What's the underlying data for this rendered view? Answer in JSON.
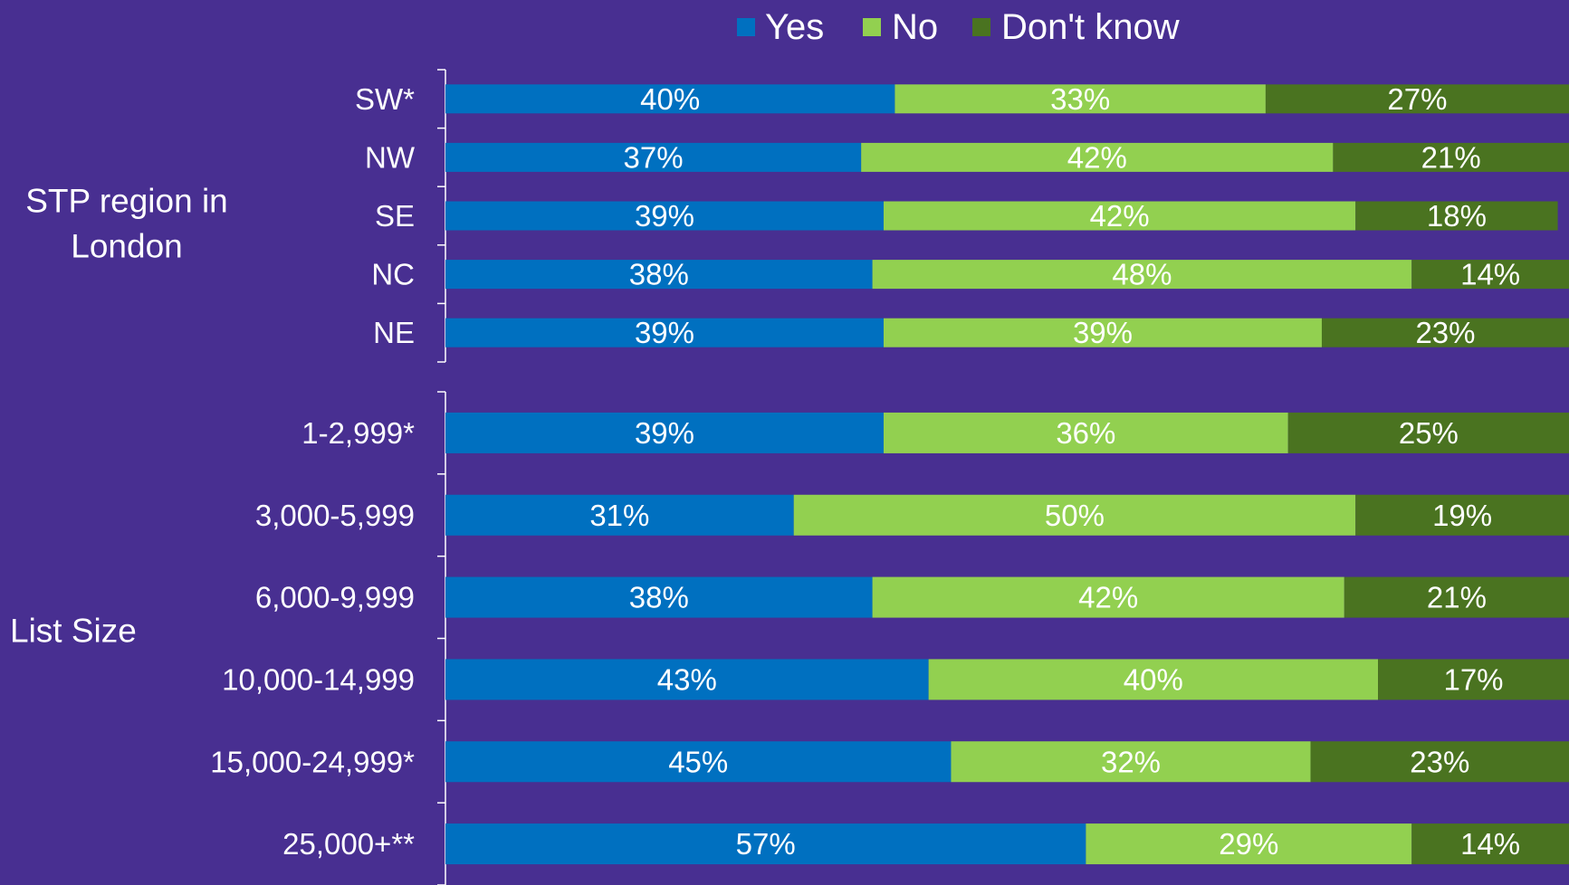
{
  "chart_data": {
    "type": "stacked-bar",
    "xlim": [
      0,
      100
    ],
    "series": [
      {
        "name": "Yes",
        "color": "#0070c0"
      },
      {
        "name": "No",
        "color": "#92d050"
      },
      {
        "name": "Don't know",
        "color": "#4a7320"
      }
    ],
    "groups": [
      {
        "label": [
          "STP region in",
          "London"
        ],
        "categories": [
          "SW*",
          "NW",
          "SE",
          "NC",
          "NE"
        ],
        "series": [
          {
            "values": [
              40,
              37,
              39,
              38,
              39
            ],
            "value_labels": [
              "40%",
              "37%",
              "39%",
              "38%",
              "39%"
            ]
          },
          {
            "values": [
              33,
              42,
              42,
              48,
              39
            ],
            "value_labels": [
              "33%",
              "42%",
              "42%",
              "48%",
              "39%"
            ]
          },
          {
            "values": [
              27,
              21,
              18,
              14,
              23
            ],
            "value_labels": [
              "27%",
              "21%",
              "18%",
              "14%",
              "23%"
            ]
          }
        ]
      },
      {
        "label": [
          "List Size"
        ],
        "categories": [
          "1-2,999*",
          "3,000-5,999",
          "6,000-9,999",
          "10,000-14,999",
          "15,000-24,999*",
          "25,000+**"
        ],
        "series": [
          {
            "values": [
              39,
              31,
              38,
              43,
              45,
              57
            ],
            "value_labels": [
              "39%",
              "31%",
              "38%",
              "43%",
              "45%",
              "57%"
            ]
          },
          {
            "values": [
              36,
              50,
              42,
              40,
              32,
              29
            ],
            "value_labels": [
              "36%",
              "50%",
              "42%",
              "40%",
              "32%",
              "29%"
            ]
          },
          {
            "values": [
              25,
              19,
              21,
              17,
              23,
              14
            ],
            "value_labels": [
              "25%",
              "19%",
              "21%",
              "17%",
              "23%",
              "14%"
            ]
          }
        ]
      }
    ]
  }
}
